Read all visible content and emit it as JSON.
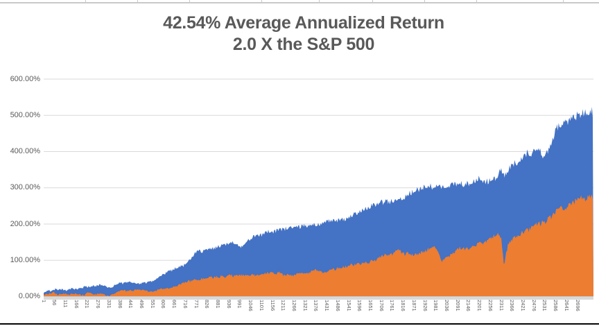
{
  "title": {
    "line1": "42.54% Average Annualized Return",
    "line2": "2.0 X the S&P 500"
  },
  "colors": {
    "blue_series": "#4472C4",
    "orange_series": "#ED7D31",
    "text": "#595959",
    "gridline": "#D9D9D9",
    "axis_band": "#D9D9D9",
    "window_edge": "#050505"
  },
  "chart_data": {
    "type": "area",
    "title": "42.54% Average Annualized Return 2.0 X the S&P 500",
    "legend": "none",
    "grid": true,
    "y_axis": {
      "unit": "%",
      "min": 0,
      "max": 600,
      "tick_labels": [
        "600.00%",
        "500.00%",
        "400.00%",
        "300.00%",
        "200.00%",
        "100.00%",
        "0.00%"
      ],
      "tick_values": [
        600,
        500,
        400,
        300,
        200,
        100,
        0
      ]
    },
    "x_axis": {
      "labels": [
        1,
        56,
        111,
        166,
        221,
        276,
        331,
        386,
        441,
        496,
        551,
        606,
        661,
        716,
        771,
        826,
        881,
        936,
        991,
        1046,
        1101,
        1156,
        1211,
        1266,
        1321,
        1376,
        1431,
        1486,
        1541,
        1596,
        1651,
        1706,
        1761,
        1816,
        1871,
        1926,
        1981,
        2036,
        2091,
        2146,
        2201,
        2256,
        2311,
        2366,
        2421,
        2476,
        2531,
        2586,
        2641,
        2696
      ],
      "range": [
        1,
        2776
      ]
    },
    "series": [
      {
        "name": "blue-area-series",
        "color": "#4472C4",
        "points": [
          [
            1,
            10
          ],
          [
            56,
            20
          ],
          [
            111,
            16
          ],
          [
            166,
            19
          ],
          [
            221,
            26
          ],
          [
            276,
            30
          ],
          [
            331,
            25
          ],
          [
            386,
            36
          ],
          [
            441,
            40
          ],
          [
            496,
            34
          ],
          [
            551,
            41
          ],
          [
            606,
            57
          ],
          [
            661,
            76
          ],
          [
            716,
            90
          ],
          [
            771,
            120
          ],
          [
            826,
            125
          ],
          [
            881,
            138
          ],
          [
            936,
            148
          ],
          [
            968,
            150
          ],
          [
            996,
            139
          ],
          [
            1046,
            163
          ],
          [
            1101,
            173
          ],
          [
            1156,
            180
          ],
          [
            1211,
            186
          ],
          [
            1266,
            190
          ],
          [
            1321,
            190
          ],
          [
            1376,
            195
          ],
          [
            1431,
            205
          ],
          [
            1486,
            212
          ],
          [
            1541,
            218
          ],
          [
            1596,
            233
          ],
          [
            1651,
            243
          ],
          [
            1706,
            263
          ],
          [
            1761,
            266
          ],
          [
            1816,
            277
          ],
          [
            1871,
            293
          ],
          [
            1926,
            301
          ],
          [
            1981,
            307
          ],
          [
            2036,
            298
          ],
          [
            2091,
            314
          ],
          [
            2146,
            316
          ],
          [
            2201,
            331
          ],
          [
            2255,
            318
          ],
          [
            2280,
            332
          ],
          [
            2311,
            350
          ],
          [
            2326,
            334
          ],
          [
            2346,
            352
          ],
          [
            2366,
            362
          ],
          [
            2421,
            386
          ],
          [
            2476,
            398
          ],
          [
            2506,
            400
          ],
          [
            2521,
            376
          ],
          [
            2562,
            420
          ],
          [
            2586,
            460
          ],
          [
            2615,
            470
          ],
          [
            2641,
            482
          ],
          [
            2668,
            490
          ],
          [
            2696,
            498
          ],
          [
            2720,
            505
          ],
          [
            2741,
            513
          ],
          [
            2762,
            517
          ],
          [
            2776,
            507
          ]
        ]
      },
      {
        "name": "orange-area-series",
        "color": "#ED7D31",
        "points": [
          [
            1,
            4
          ],
          [
            56,
            8
          ],
          [
            111,
            6
          ],
          [
            166,
            9
          ],
          [
            207,
            1
          ],
          [
            221,
            10
          ],
          [
            276,
            7
          ],
          [
            331,
            4
          ],
          [
            386,
            14
          ],
          [
            441,
            16
          ],
          [
            496,
            16
          ],
          [
            551,
            13
          ],
          [
            606,
            24
          ],
          [
            661,
            27
          ],
          [
            716,
            37
          ],
          [
            771,
            44
          ],
          [
            826,
            52
          ],
          [
            881,
            56
          ],
          [
            936,
            56
          ],
          [
            991,
            55
          ],
          [
            1046,
            59
          ],
          [
            1101,
            62
          ],
          [
            1156,
            65
          ],
          [
            1211,
            62
          ],
          [
            1266,
            63
          ],
          [
            1321,
            66
          ],
          [
            1376,
            71
          ],
          [
            1431,
            69
          ],
          [
            1486,
            78
          ],
          [
            1541,
            84
          ],
          [
            1596,
            91
          ],
          [
            1651,
            100
          ],
          [
            1706,
            110
          ],
          [
            1761,
            116
          ],
          [
            1791,
            130
          ],
          [
            1816,
            119
          ],
          [
            1871,
            116
          ],
          [
            1926,
            126
          ],
          [
            1981,
            136
          ],
          [
            2009,
            98
          ],
          [
            2056,
            116
          ],
          [
            2091,
            132
          ],
          [
            2146,
            133
          ],
          [
            2201,
            146
          ],
          [
            2256,
            158
          ],
          [
            2291,
            170
          ],
          [
            2311,
            160
          ],
          [
            2324,
            88
          ],
          [
            2346,
            150
          ],
          [
            2366,
            159
          ],
          [
            2421,
            181
          ],
          [
            2476,
            197
          ],
          [
            2531,
            205
          ],
          [
            2586,
            236
          ],
          [
            2641,
            248
          ],
          [
            2696,
            270
          ],
          [
            2721,
            274
          ],
          [
            2736,
            264
          ],
          [
            2758,
            278
          ],
          [
            2776,
            274
          ]
        ]
      }
    ]
  }
}
